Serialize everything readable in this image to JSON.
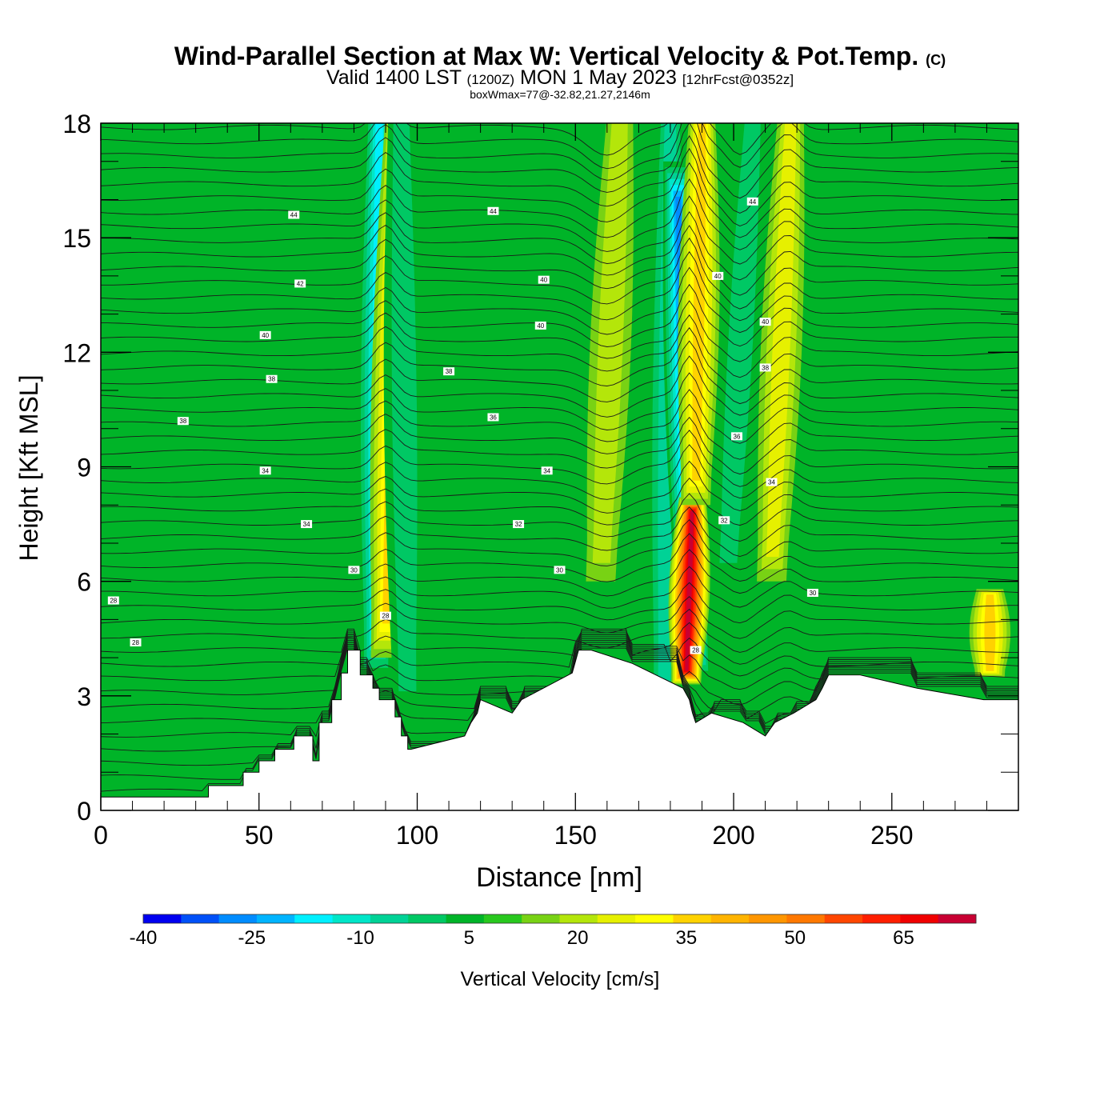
{
  "title": {
    "main": "Wind-Parallel Section at Max W: Vertical Velocity & Pot.Temp.",
    "copyright": "(C)",
    "valid_prefix": "Valid 1400 LST",
    "utc": "(1200Z)",
    "date": "MON 1 May 2023",
    "forecast": "[12hrFcst@0352z]",
    "box_info": "boxWmax=77@-32.82,21.27,2146m"
  },
  "chart_data": {
    "type": "heatmap",
    "xlabel": "Distance [nm]",
    "ylabel": "Height [Kft MSL]",
    "xlim": [
      0,
      290
    ],
    "ylim": [
      0,
      18
    ],
    "x_ticks": [
      0,
      50,
      100,
      150,
      200,
      250
    ],
    "y_ticks": [
      0,
      3,
      6,
      9,
      12,
      15,
      18
    ],
    "colorbar": {
      "label": "Vertical Velocity [cm/s]",
      "range": [
        -40,
        75
      ],
      "step": 5,
      "tick_values": [
        -40,
        -25,
        -10,
        5,
        20,
        35,
        50,
        65
      ],
      "tick_labels": [
        "-40",
        "-25",
        "-10",
        "5",
        "20",
        "35",
        "50",
        "65"
      ],
      "colors": [
        "#0000f0",
        "#0050f8",
        "#008cff",
        "#00b4ff",
        "#00f0ff",
        "#00e6c8",
        "#00d296",
        "#00c864",
        "#00b428",
        "#28c81e",
        "#78d214",
        "#b4e60a",
        "#e6f000",
        "#ffff00",
        "#ffd200",
        "#ffb400",
        "#ff9600",
        "#ff7800",
        "#ff4600",
        "#ff1e00",
        "#f00000",
        "#c80032"
      ]
    },
    "terrain_kft": {
      "x": [
        0,
        34,
        34,
        45,
        45,
        50,
        50,
        55,
        55,
        61,
        61,
        67,
        67,
        69,
        69,
        73,
        73,
        76,
        76,
        78,
        78,
        82,
        82,
        86,
        86,
        88,
        88,
        93,
        93,
        95,
        95,
        97,
        97,
        98,
        98,
        115,
        115,
        117,
        117,
        119,
        119,
        120,
        120,
        130,
        130,
        133,
        133,
        149,
        149,
        150,
        150,
        151,
        151,
        152,
        152,
        153,
        153,
        154,
        154,
        155,
        155,
        168,
        168,
        184,
        184,
        186,
        186,
        187,
        187,
        188,
        188,
        193,
        193,
        203,
        203,
        210,
        210,
        213,
        213,
        219,
        219,
        226,
        226,
        228,
        228,
        230,
        230,
        232,
        232,
        240,
        240,
        258,
        258,
        279,
        279,
        290
      ],
      "y": [
        0.35,
        0.35,
        0.65,
        0.65,
        1.0,
        1.0,
        1.3,
        1.3,
        1.6,
        1.6,
        1.95,
        1.95,
        1.3,
        1.3,
        2.3,
        2.3,
        2.9,
        2.9,
        3.6,
        3.6,
        4.2,
        4.2,
        3.55,
        3.55,
        3.2,
        3.2,
        2.9,
        2.9,
        2.45,
        2.45,
        1.95,
        1.95,
        1.6,
        1.6,
        1.6,
        1.95,
        1.95,
        2.3,
        2.3,
        2.55,
        2.55,
        2.9,
        2.9,
        2.55,
        2.55,
        2.9,
        2.9,
        3.6,
        3.6,
        3.9,
        3.9,
        4.2,
        4.2,
        4.2,
        4.2,
        4.2,
        4.2,
        4.2,
        4.2,
        4.2,
        4.2,
        3.85,
        3.85,
        3.2,
        3.2,
        2.9,
        2.9,
        2.55,
        2.55,
        2.3,
        2.3,
        2.55,
        2.55,
        2.3,
        2.3,
        1.95,
        1.95,
        2.3,
        2.3,
        2.55,
        2.55,
        2.9,
        2.9,
        3.2,
        3.2,
        3.55,
        3.55,
        3.55,
        3.55,
        3.55,
        3.55,
        3.2,
        3.2,
        2.9,
        2.9,
        2.9
      ]
    },
    "w_features": [
      {
        "x_bottom": 87,
        "x_top": 88,
        "y_start": 3.5,
        "y_end": 18,
        "peak": -22
      },
      {
        "x_bottom": 90,
        "x_top": 94,
        "y_start": 4.0,
        "y_end": 18,
        "peak": 30
      },
      {
        "x_bottom": 97,
        "x_top": 95,
        "y_start": 2.5,
        "y_end": 18,
        "peak": -9
      },
      {
        "x_bottom": 158,
        "x_top": 164,
        "y_start": 6.0,
        "y_end": 18,
        "peak": 17
      },
      {
        "x_bottom": 178,
        "x_top": 180,
        "y_start": 2.5,
        "y_end": 18,
        "peak": -10
      },
      {
        "x_bottom": 188,
        "x_top": 182,
        "y_start": 3.5,
        "y_end": 17,
        "peak": -32
      },
      {
        "x_bottom": 185,
        "x_top": 187,
        "y_start": 3.3,
        "y_end": 8.2,
        "peak": 68
      },
      {
        "x_bottom": 188,
        "x_top": 190,
        "y_start": 8.0,
        "y_end": 18,
        "peak": 30
      },
      {
        "x_bottom": 198,
        "x_top": 206,
        "y_start": 6.0,
        "y_end": 18,
        "peak": -8
      },
      {
        "x_bottom": 212,
        "x_top": 218,
        "y_start": 6.0,
        "y_end": 18,
        "peak": 20
      },
      {
        "x_bottom": 281,
        "x_top": 281,
        "y_start": 3.5,
        "y_end": 5.8,
        "peak": 32
      }
    ],
    "theta_contour_labels": [
      {
        "text": "44",
        "x": 61,
        "y": 15.6
      },
      {
        "text": "44",
        "x": 124,
        "y": 15.7
      },
      {
        "text": "44",
        "x": 206,
        "y": 15.95
      },
      {
        "text": "42",
        "x": 63,
        "y": 13.8
      },
      {
        "text": "40",
        "x": 140,
        "y": 13.9
      },
      {
        "text": "40",
        "x": 195,
        "y": 14.0
      },
      {
        "text": "40",
        "x": 52,
        "y": 12.45
      },
      {
        "text": "40",
        "x": 139,
        "y": 12.7
      },
      {
        "text": "40",
        "x": 210,
        "y": 12.8
      },
      {
        "text": "38",
        "x": 54,
        "y": 11.3
      },
      {
        "text": "38",
        "x": 110,
        "y": 11.5
      },
      {
        "text": "38",
        "x": 210,
        "y": 11.6
      },
      {
        "text": "38",
        "x": 26,
        "y": 10.2
      },
      {
        "text": "36",
        "x": 124,
        "y": 10.3
      },
      {
        "text": "36",
        "x": 201,
        "y": 9.8
      },
      {
        "text": "34",
        "x": 52,
        "y": 8.9
      },
      {
        "text": "34",
        "x": 141,
        "y": 8.9
      },
      {
        "text": "34",
        "x": 212,
        "y": 8.6
      },
      {
        "text": "34",
        "x": 65,
        "y": 7.5
      },
      {
        "text": "32",
        "x": 132,
        "y": 7.5
      },
      {
        "text": "32",
        "x": 197,
        "y": 7.6
      },
      {
        "text": "30",
        "x": 80,
        "y": 6.3
      },
      {
        "text": "30",
        "x": 145,
        "y": 6.3
      },
      {
        "text": "30",
        "x": 225,
        "y": 5.7
      },
      {
        "text": "28",
        "x": 4,
        "y": 5.5
      },
      {
        "text": "28",
        "x": 90,
        "y": 5.1
      },
      {
        "text": "28",
        "x": 11,
        "y": 4.4
      },
      {
        "text": "28",
        "x": 188,
        "y": 4.2
      }
    ]
  }
}
